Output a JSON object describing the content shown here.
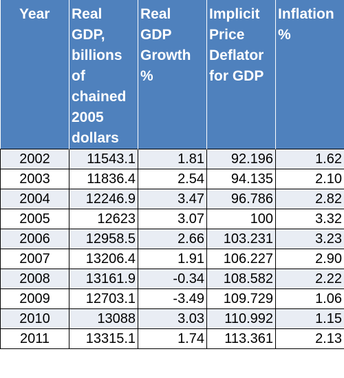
{
  "table": {
    "headers": [
      "Year",
      "Real GDP, billions of chained 2005 dollars",
      "Real GDP Growth %",
      "Implicit Price Deflator for GDP",
      "Inflation %"
    ],
    "rows": [
      [
        "2002",
        "11543.1",
        "1.81",
        "92.196",
        "1.62"
      ],
      [
        "2003",
        "11836.4",
        "2.54",
        "94.135",
        "2.10"
      ],
      [
        "2004",
        "12246.9",
        "3.47",
        "96.786",
        "2.82"
      ],
      [
        "2005",
        "12623",
        "3.07",
        "100",
        "3.32"
      ],
      [
        "2006",
        "12958.5",
        "2.66",
        "103.231",
        "3.23"
      ],
      [
        "2007",
        "13206.4",
        "1.91",
        "106.227",
        "2.90"
      ],
      [
        "2008",
        "13161.9",
        "-0.34",
        "108.582",
        "2.22"
      ],
      [
        "2009",
        "12703.1",
        "-3.49",
        "109.729",
        "1.06"
      ],
      [
        "2010",
        "13088",
        "3.03",
        "110.992",
        "1.15"
      ],
      [
        "2011",
        "13315.1",
        "1.74",
        "113.361",
        "2.13"
      ]
    ]
  },
  "colors": {
    "header_bg": "#4f81bd",
    "header_text": "#ffffff",
    "row_band": "#e9edf4",
    "row_plain": "#ffffff",
    "border": "#000000"
  }
}
